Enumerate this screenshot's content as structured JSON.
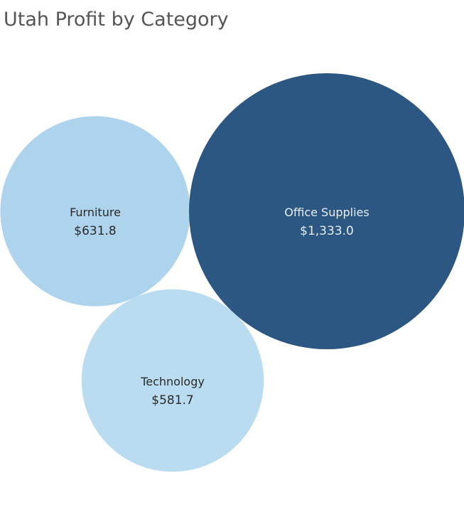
{
  "chart_data": {
    "type": "bubble",
    "title": "Utah Profit by Category",
    "measure": "Profit",
    "series": [
      {
        "category": "Furniture",
        "value": 631.8,
        "value_label": "$631.8",
        "fill": "#aed3ec",
        "text_color": "#2a2a2a"
      },
      {
        "category": "Office Supplies",
        "value": 1333.0,
        "value_label": "$1,333.0",
        "fill": "#2b5782",
        "text_color": "#e8eef5"
      },
      {
        "category": "Technology",
        "value": 581.7,
        "value_label": "$581.7",
        "fill": "#b9dcf0",
        "text_color": "#2a2a2a"
      }
    ]
  }
}
